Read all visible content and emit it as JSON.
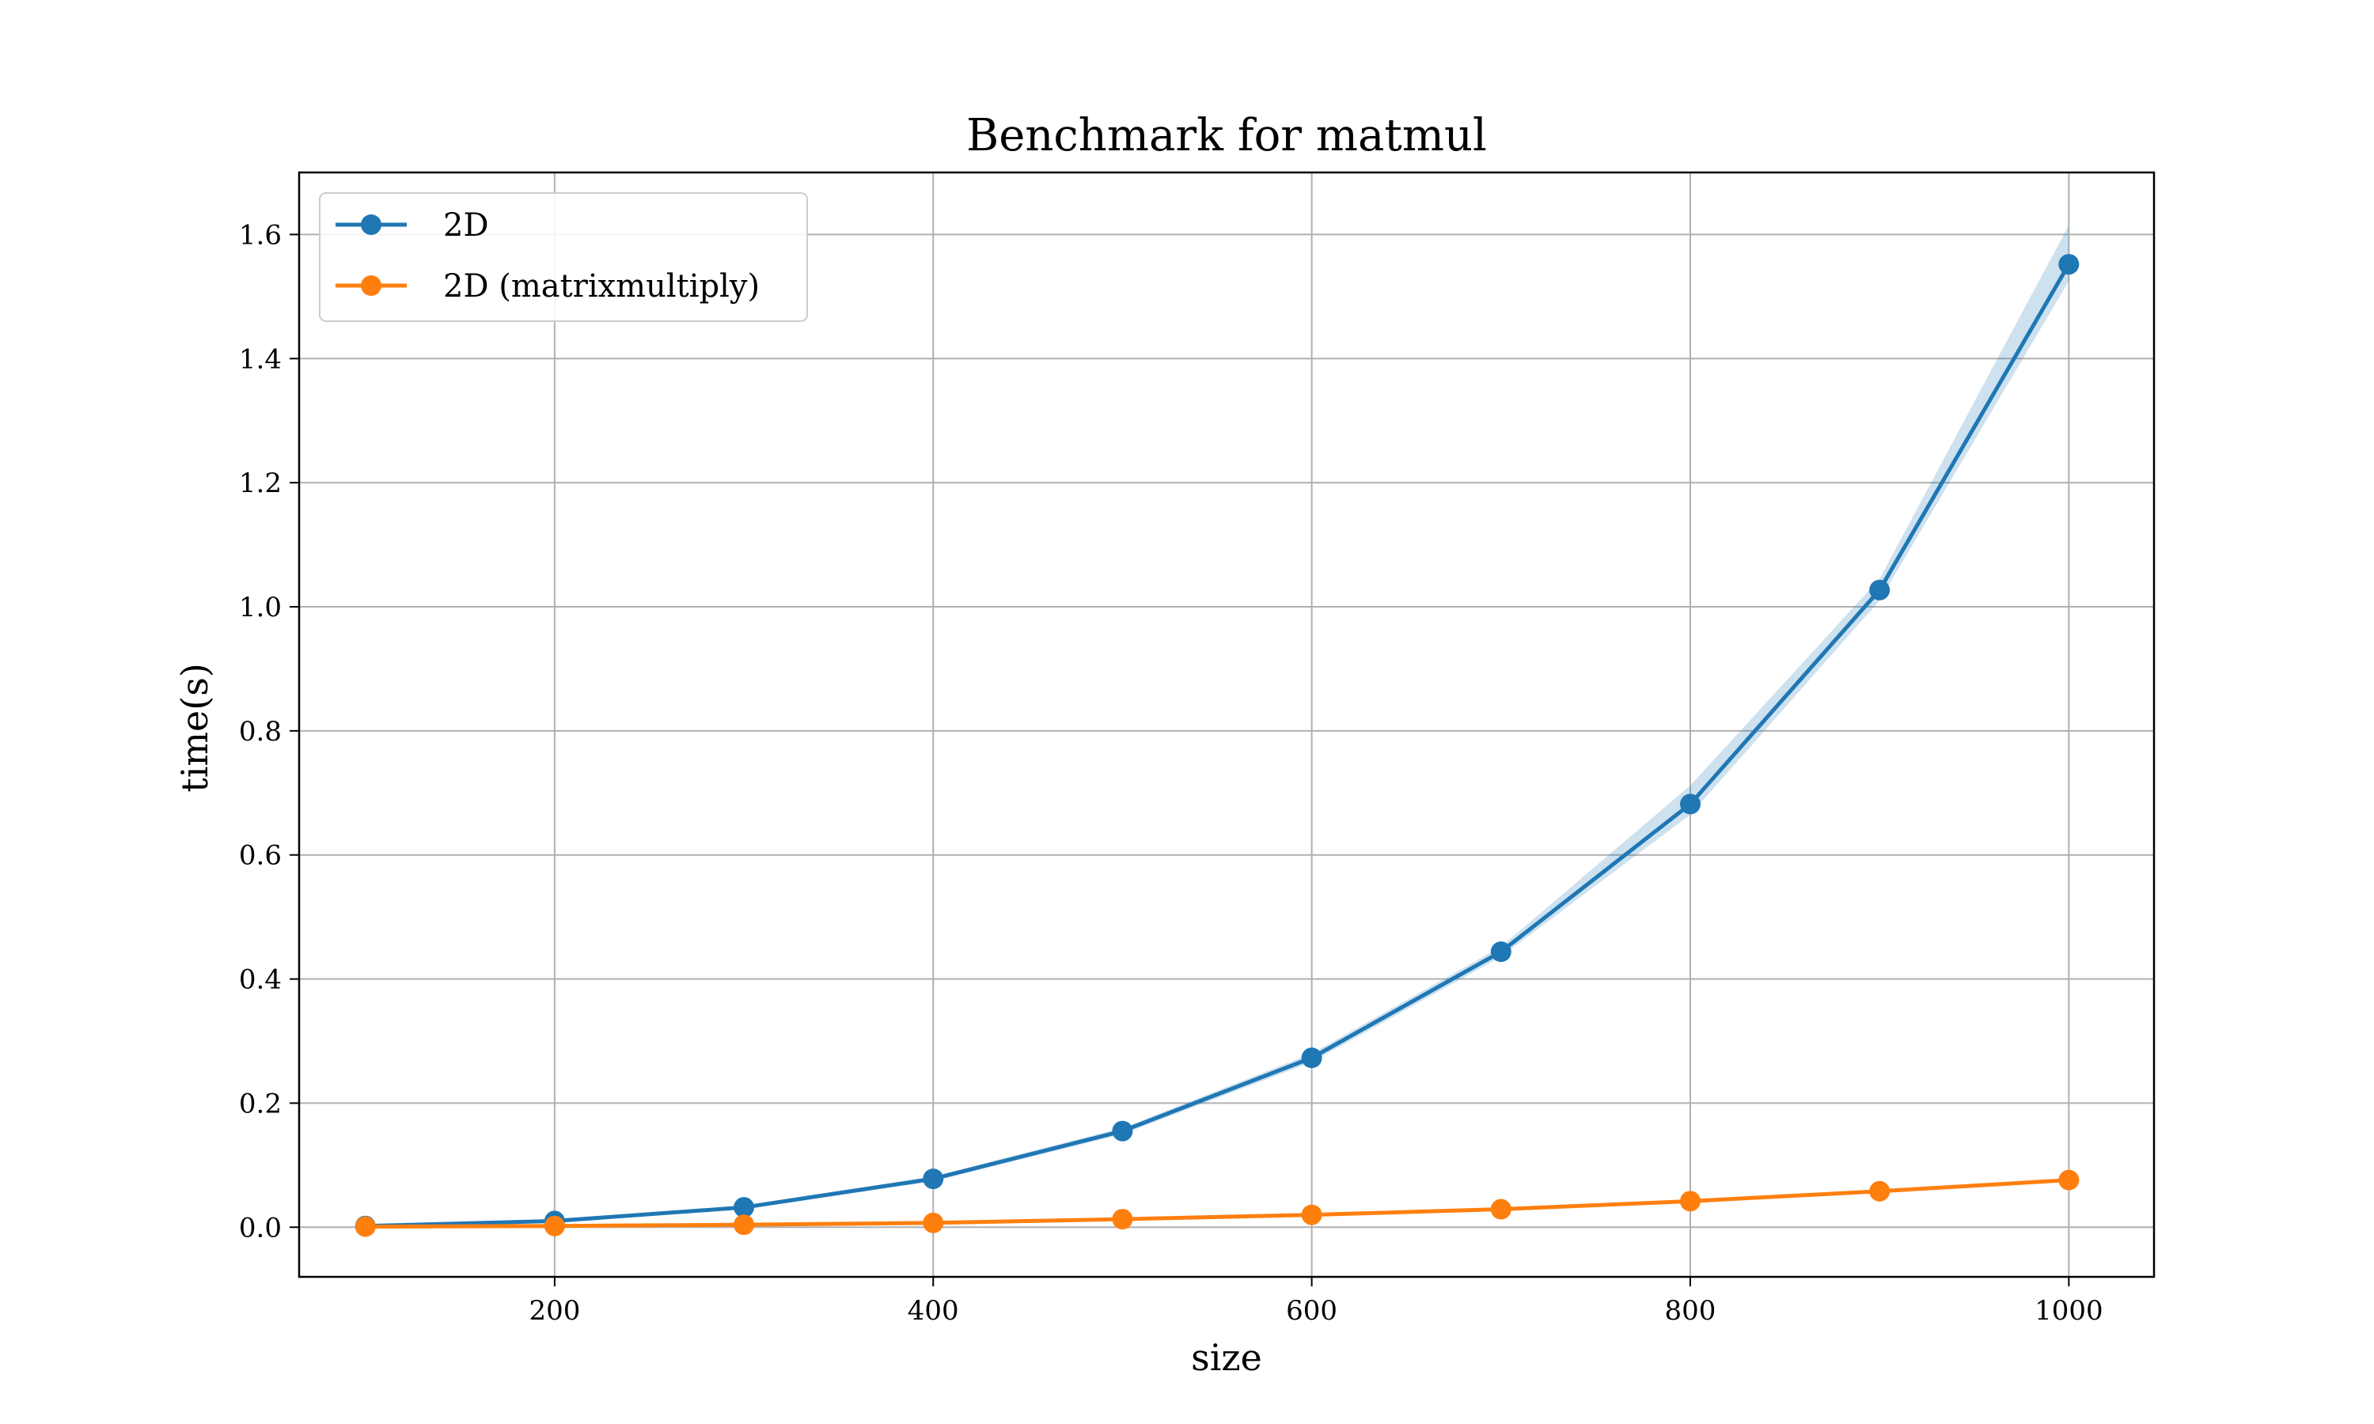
{
  "chart_data": {
    "type": "line",
    "title": "Benchmark for matmul",
    "xlabel": "size",
    "ylabel": "time(s)",
    "xlim": [
      65,
      1045
    ],
    "ylim": [
      -0.08,
      1.7
    ],
    "xticks": [
      200,
      400,
      600,
      800,
      1000
    ],
    "xtick_labels": [
      "200",
      "400",
      "600",
      "800",
      "1000"
    ],
    "yticks": [
      0.0,
      0.2,
      0.4,
      0.6,
      0.8,
      1.0,
      1.2,
      1.4,
      1.6
    ],
    "ytick_labels": [
      "0.0",
      "0.2",
      "0.4",
      "0.6",
      "0.8",
      "1.0",
      "1.2",
      "1.4",
      "1.6"
    ],
    "grid": true,
    "legend_position": "top-left",
    "x": [
      100,
      200,
      300,
      400,
      500,
      600,
      700,
      800,
      900,
      1000
    ],
    "series": [
      {
        "name": "2D",
        "color": "#1f77b4",
        "values": [
          0.002,
          0.01,
          0.032,
          0.078,
          0.155,
          0.273,
          0.444,
          0.682,
          1.027,
          1.552
        ],
        "band_lower": [
          0.001,
          0.008,
          0.029,
          0.074,
          0.15,
          0.266,
          0.436,
          0.665,
          1.01,
          1.525
        ],
        "band_upper": [
          0.003,
          0.012,
          0.035,
          0.082,
          0.16,
          0.28,
          0.452,
          0.712,
          1.045,
          1.615
        ]
      },
      {
        "name": "2D (matrixmultiply)",
        "color": "#ff7f0e",
        "values": [
          0.001,
          0.002,
          0.004,
          0.007,
          0.013,
          0.02,
          0.029,
          0.042,
          0.058,
          0.076
        ]
      }
    ]
  }
}
